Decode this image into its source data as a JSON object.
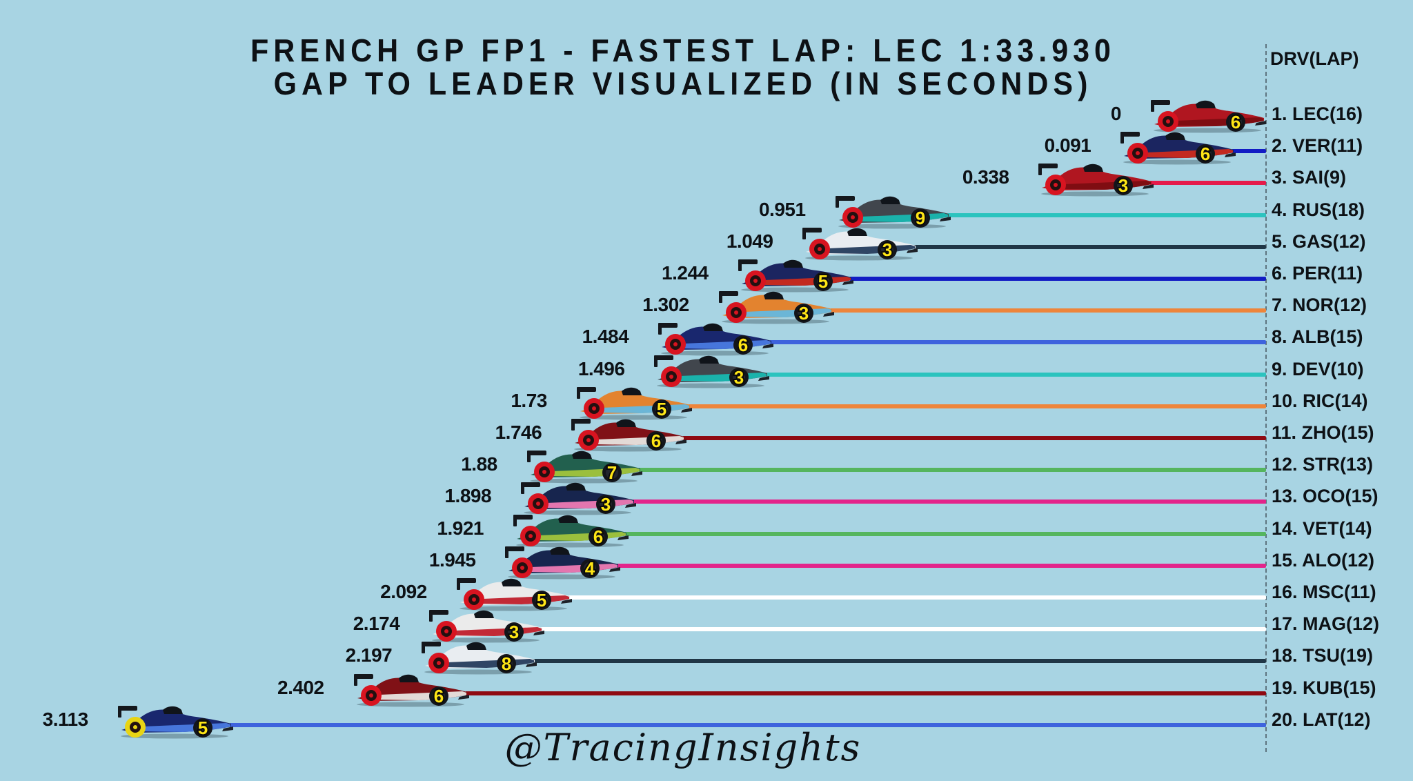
{
  "title": {
    "line1": "FRENCH GP FP1 - FASTEST LAP: LEC 1:33.930",
    "line2": "GAP TO LEADER VISUALIZED (IN SECONDS)"
  },
  "column_header": "DRV(LAP)",
  "watermark": "@TracingInsights",
  "colors": {
    "background": "#a8d4e3",
    "text": "#0d1115",
    "dashed_axis": "#46545e",
    "wheel_number_text": "#ffe616",
    "soft_tyre": "#d81420",
    "medium_tyre": "#e8d414"
  },
  "teams": {
    "ferrari": {
      "primary": "#b01620",
      "accent": "#7c0d12",
      "line": "#e51a4a"
    },
    "red_bull": {
      "primary": "#1b2560",
      "accent": "#cc2a1c",
      "line": "#121cc4"
    },
    "mercedes": {
      "primary": "#41464d",
      "accent": "#18b8b0",
      "line": "#2bc3be"
    },
    "alphatauri": {
      "primary": "#e9edf1",
      "accent": "#253c5c",
      "line": "#203646"
    },
    "mclaren": {
      "primary": "#e3832f",
      "accent": "#64b8e0",
      "line": "#ee853b"
    },
    "williams": {
      "primary": "#19276e",
      "accent": "#4a7ae0",
      "line": "#3e63dd"
    },
    "alfa_romeo": {
      "primary": "#801116",
      "accent": "#e8e6e0",
      "line": "#8f0a12"
    },
    "aston_martin": {
      "primary": "#22604e",
      "accent": "#a2c43c",
      "line": "#55b55e"
    },
    "alpine": {
      "primary": "#17254e",
      "accent": "#ee7ab4",
      "line": "#e3248b"
    },
    "haas": {
      "primary": "#ebebeb",
      "accent": "#c0202c",
      "line": "#ffffff"
    }
  },
  "chart_data": {
    "type": "bar",
    "title": "French GP FP1 - Fastest lap: LEC 1:33.930, gap to leader visualized",
    "unit": "seconds",
    "fastest_lap": {
      "driver": "LEC",
      "time": "1:33.930"
    },
    "x_axis": {
      "reference": "leader at right dashed axis",
      "range_seconds": [
        0,
        3.113
      ]
    },
    "legend_position": "none",
    "rows": [
      {
        "position": 1,
        "driver": "LEC",
        "laps": 16,
        "label": "1. LEC(16)",
        "gap": 0,
        "gap_label": "0",
        "team": "ferrari",
        "wheel_number": "6",
        "tyre": "soft"
      },
      {
        "position": 2,
        "driver": "VER",
        "laps": 11,
        "label": "2. VER(11)",
        "gap": 0.091,
        "gap_label": "0.091",
        "team": "red_bull",
        "wheel_number": "6",
        "tyre": "soft"
      },
      {
        "position": 3,
        "driver": "SAI",
        "laps": 9,
        "label": "3. SAI(9)",
        "gap": 0.338,
        "gap_label": "0.338",
        "team": "ferrari",
        "wheel_number": "3",
        "tyre": "soft"
      },
      {
        "position": 4,
        "driver": "RUS",
        "laps": 18,
        "label": "4. RUS(18)",
        "gap": 0.951,
        "gap_label": "0.951",
        "team": "mercedes",
        "wheel_number": "9",
        "tyre": "soft"
      },
      {
        "position": 5,
        "driver": "GAS",
        "laps": 12,
        "label": "5. GAS(12)",
        "gap": 1.049,
        "gap_label": "1.049",
        "team": "alphatauri",
        "wheel_number": "3",
        "tyre": "soft"
      },
      {
        "position": 6,
        "driver": "PER",
        "laps": 11,
        "label": "6. PER(11)",
        "gap": 1.244,
        "gap_label": "1.244",
        "team": "red_bull",
        "wheel_number": "5",
        "tyre": "soft"
      },
      {
        "position": 7,
        "driver": "NOR",
        "laps": 12,
        "label": "7. NOR(12)",
        "gap": 1.302,
        "gap_label": "1.302",
        "team": "mclaren",
        "wheel_number": "3",
        "tyre": "soft"
      },
      {
        "position": 8,
        "driver": "ALB",
        "laps": 15,
        "label": "8. ALB(15)",
        "gap": 1.484,
        "gap_label": "1.484",
        "team": "williams",
        "wheel_number": "6",
        "tyre": "soft"
      },
      {
        "position": 9,
        "driver": "DEV",
        "laps": 10,
        "label": "9. DEV(10)",
        "gap": 1.496,
        "gap_label": "1.496",
        "team": "mercedes",
        "wheel_number": "3",
        "tyre": "soft"
      },
      {
        "position": 10,
        "driver": "RIC",
        "laps": 14,
        "label": "10. RIC(14)",
        "gap": 1.73,
        "gap_label": "1.73",
        "team": "mclaren",
        "wheel_number": "5",
        "tyre": "soft"
      },
      {
        "position": 11,
        "driver": "ZHO",
        "laps": 15,
        "label": "11. ZHO(15)",
        "gap": 1.746,
        "gap_label": "1.746",
        "team": "alfa_romeo",
        "wheel_number": "6",
        "tyre": "soft"
      },
      {
        "position": 12,
        "driver": "STR",
        "laps": 13,
        "label": "12. STR(13)",
        "gap": 1.88,
        "gap_label": "1.88",
        "team": "aston_martin",
        "wheel_number": "7",
        "tyre": "soft"
      },
      {
        "position": 13,
        "driver": "OCO",
        "laps": 15,
        "label": "13. OCO(15)",
        "gap": 1.898,
        "gap_label": "1.898",
        "team": "alpine",
        "wheel_number": "3",
        "tyre": "soft"
      },
      {
        "position": 14,
        "driver": "VET",
        "laps": 14,
        "label": "14. VET(14)",
        "gap": 1.921,
        "gap_label": "1.921",
        "team": "aston_martin",
        "wheel_number": "6",
        "tyre": "soft"
      },
      {
        "position": 15,
        "driver": "ALO",
        "laps": 12,
        "label": "15. ALO(12)",
        "gap": 1.945,
        "gap_label": "1.945",
        "team": "alpine",
        "wheel_number": "4",
        "tyre": "soft"
      },
      {
        "position": 16,
        "driver": "MSC",
        "laps": 11,
        "label": "16. MSC(11)",
        "gap": 2.092,
        "gap_label": "2.092",
        "team": "haas",
        "wheel_number": "5",
        "tyre": "soft"
      },
      {
        "position": 17,
        "driver": "MAG",
        "laps": 12,
        "label": "17. MAG(12)",
        "gap": 2.174,
        "gap_label": "2.174",
        "team": "haas",
        "wheel_number": "3",
        "tyre": "soft"
      },
      {
        "position": 18,
        "driver": "TSU",
        "laps": 19,
        "label": "18. TSU(19)",
        "gap": 2.197,
        "gap_label": "2.197",
        "team": "alphatauri",
        "wheel_number": "8",
        "tyre": "soft"
      },
      {
        "position": 19,
        "driver": "KUB",
        "laps": 15,
        "label": "19. KUB(15)",
        "gap": 2.402,
        "gap_label": "2.402",
        "team": "alfa_romeo",
        "wheel_number": "6",
        "tyre": "soft"
      },
      {
        "position": 20,
        "driver": "LAT",
        "laps": 12,
        "label": "20. LAT(12)",
        "gap": 3.113,
        "gap_label": "3.113",
        "team": "williams",
        "wheel_number": "5",
        "tyre": "medium"
      }
    ]
  }
}
